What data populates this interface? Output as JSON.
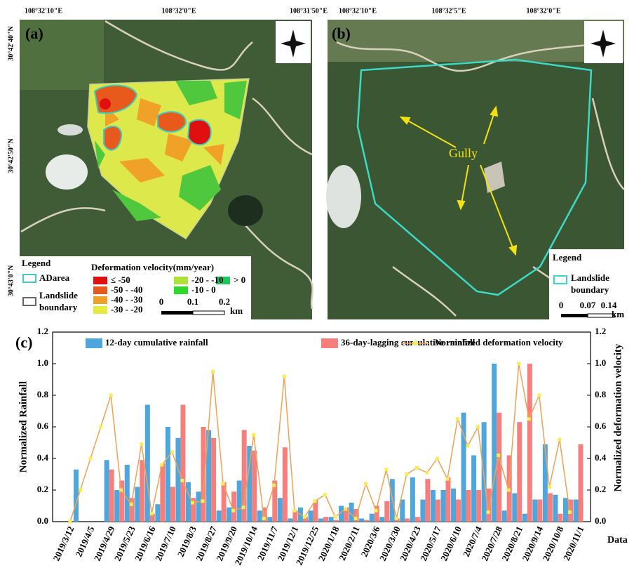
{
  "maps": {
    "a": {
      "label": "(a)",
      "lon_labels": [
        "108°32'10\"E",
        "108°32'0\"E",
        "108°31'50\"E"
      ],
      "lat_labels": [
        "30°42'40\"N",
        "30°42'50\"N",
        "30°43'0\"N"
      ],
      "legend_title": "Legend",
      "adarea": "ADarea",
      "landslide": "Landslide",
      "boundary": "boundary",
      "velocity_title": "Deformation velocity(mm/year)",
      "classes": [
        "≤ -50",
        "-50 - -40",
        "-40 - -30",
        "-30 - -20",
        "-20 - -10",
        "-10 - 0",
        "> 0"
      ],
      "scale": [
        "0",
        "0.1",
        "0.2",
        "km"
      ]
    },
    "b": {
      "label": "(b)",
      "lon_labels": [
        "108°32'10\"E",
        "108°32'5\"E",
        "108°32'0\"E"
      ],
      "gully": "Gully",
      "legend_title": "Legend",
      "landslide": "Landslide",
      "boundary": "boundary",
      "scale": [
        "0",
        "0.07",
        "0.14",
        "km"
      ]
    }
  },
  "chart_data": {
    "type": "bar-line",
    "label": "(c)",
    "y_label": "Normalized  Rainfall",
    "y2_label": "Normalized deformation velocity",
    "x_label": "Data",
    "categories": [
      "2019/3/12",
      null,
      "2019/4/5",
      null,
      "2019/4/29",
      null,
      "2019/5/23",
      null,
      "2019/6/16",
      null,
      "2019/7/10",
      null,
      "2019/8/3",
      null,
      "2019/8/27",
      null,
      "2019/9/20",
      null,
      "2019/10/14",
      null,
      "2019/11/7",
      null,
      "2019/12/1",
      null,
      "2019/12/25",
      null,
      "2020/1/18",
      null,
      "2020/2/11",
      null,
      "2020/3/6",
      null,
      "2020/3/30",
      null,
      "2020/4/23",
      null,
      "2020/5/17",
      null,
      "2020/6/10",
      null,
      "2020/7/4",
      null,
      "2020/7/28",
      null,
      "2020/8/21",
      null,
      "2020/9/14",
      null,
      "2020/10/8",
      null,
      "2020/11/1"
    ],
    "series": [
      {
        "name": "12-day cumulative rainfall",
        "type": "bar",
        "color": "#4ea6dc",
        "values": [
          0,
          0.33,
          0,
          0,
          0.39,
          0.2,
          0.36,
          0.22,
          0.74,
          0.11,
          0.6,
          0.53,
          0.25,
          0.19,
          0.58,
          0.07,
          0.09,
          0.26,
          0.48,
          0.07,
          0.03,
          0.15,
          0.02,
          0.09,
          0.07,
          0.02,
          0.03,
          0.1,
          0.12,
          0.02,
          0.05,
          0.03,
          0.27,
          0.14,
          0.28,
          0.14,
          0.2,
          0.2,
          0.21,
          0.69,
          0.42,
          0.63,
          1.0,
          0.07,
          0.18,
          0.05,
          0.14,
          0.49,
          0.17,
          0.15,
          0.14
        ]
      },
      {
        "name": "36-day-lagging cumulative rainfall",
        "type": "bar",
        "color": "#f47f7c",
        "values": [
          0,
          0,
          0,
          0,
          0.33,
          0.26,
          0.15,
          0.39,
          0.05,
          0.37,
          0.22,
          0.74,
          0.15,
          0.6,
          0.53,
          0.25,
          0.19,
          0.58,
          0.45,
          0.09,
          0.26,
          0.47,
          0.07,
          0.03,
          0.14,
          0.03,
          0.01,
          0.09,
          0.08,
          0.01,
          0.1,
          0.13,
          0.02,
          0.02,
          0.03,
          0.27,
          0.14,
          0.28,
          0.14,
          0.2,
          0.2,
          0.21,
          0.69,
          0.42,
          0.63,
          1.0,
          0.14,
          0.18,
          0.05,
          0.14,
          0.49
        ]
      },
      {
        "name": "Normalized deformation velocity",
        "type": "line",
        "axis": "y2",
        "color": "#f2a155",
        "marker_color": "#f5ee55",
        "values": [
          0,
          0.2,
          0.4,
          0.6,
          0.8,
          0.2,
          0.11,
          0.49,
          0.05,
          0.36,
          0.44,
          0.26,
          0.12,
          0.13,
          0.95,
          0.24,
          0.07,
          0.09,
          0.55,
          0.02,
          0.23,
          0.92,
          0.07,
          0.03,
          0.13,
          0.17,
          0.03,
          0.08,
          0.02,
          0.24,
          0.07,
          0.33,
          0.02,
          0.3,
          0.34,
          0.31,
          0.4,
          0.27,
          0.65,
          0.48,
          0.6,
          0.06,
          0.42,
          0.2,
          1.0,
          0.65,
          0.8,
          0.22,
          0.52,
          0.06,
          null
        ]
      }
    ],
    "ylim": [
      0,
      1.2
    ],
    "yticks": [
      {
        "value": 0,
        "label": "0.0"
      },
      0.2,
      0.4,
      0.6,
      0.8,
      {
        "value": 1,
        "label": "1.0"
      },
      1.2
    ],
    "y2lim": [
      0,
      1.2
    ],
    "y2ticks": [
      {
        "value": 0,
        "label": "0.0"
      },
      0.2,
      0.4,
      0.6,
      0.8,
      {
        "value": 1,
        "label": "1.0"
      },
      1.2
    ],
    "grid": false
  }
}
